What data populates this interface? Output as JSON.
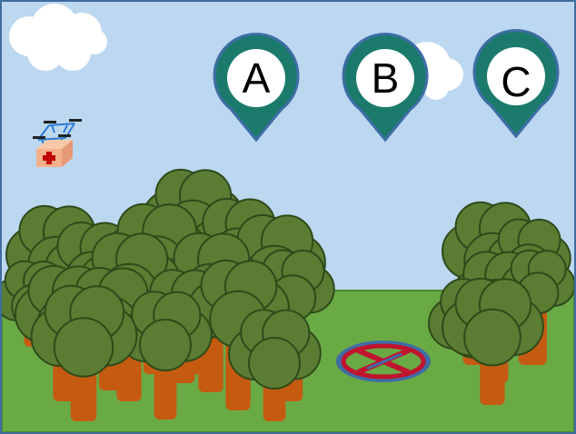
{
  "scene": {
    "sky_color": "#bcd7f0",
    "ground_color": "#6aaa45",
    "ground_edge_color": "#4d8a33",
    "border_color": "#3f6ca0"
  },
  "markers": [
    {
      "label": "A",
      "color": "#1b7a6b"
    },
    {
      "label": "B",
      "color": "#1b7a6b"
    },
    {
      "label": "C",
      "color": "#1b7a6b"
    }
  ],
  "icons": {
    "drone": "drone-with-medical-kit-icon",
    "no_landing": "crossed-out-landing-pad-icon",
    "clouds": "cloud-icon",
    "trees": "tree-icon"
  },
  "colors": {
    "tree_canopy": "#5b7d33",
    "tree_outline": "#2f4a1a",
    "tree_trunk": "#c55a11",
    "landing_pad_ring": "#3e6da6",
    "landing_pad_cross": "#c0142e",
    "drone_frame": "#2b7bd1",
    "medical_box": "#f4b08c",
    "medical_cross": "#c00000"
  }
}
